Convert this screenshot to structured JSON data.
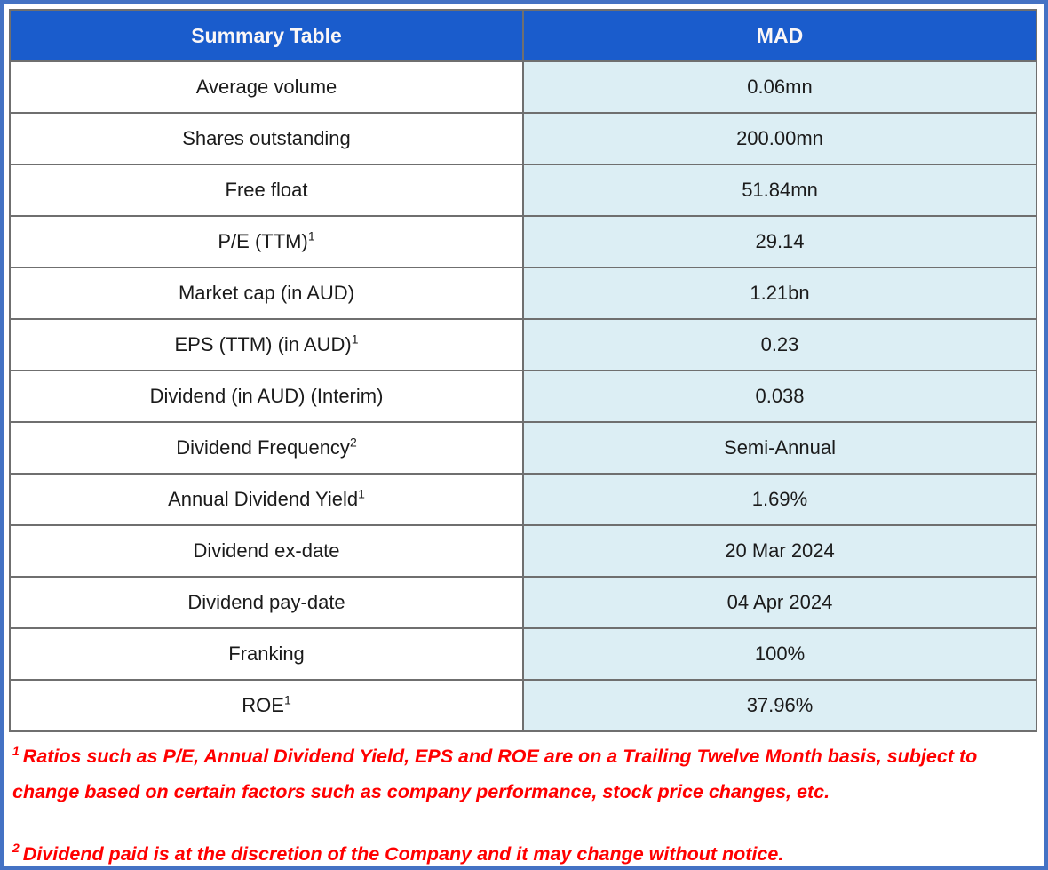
{
  "colors": {
    "frame_border": "#4472C4",
    "header_bg": "#1A5CCC",
    "value_bg": "#DCEEF4",
    "grid_border": "#6F6F6F",
    "footnote": "#FF0000"
  },
  "table": {
    "header": {
      "col1": "Summary Table",
      "col2": "MAD"
    },
    "rows": [
      {
        "label": "Average volume",
        "sup": "",
        "value": "0.06mn"
      },
      {
        "label": "Shares outstanding",
        "sup": "",
        "value": "200.00mn"
      },
      {
        "label": "Free float",
        "sup": "",
        "value": "51.84mn"
      },
      {
        "label": "P/E (TTM)",
        "sup": "1",
        "value": "29.14"
      },
      {
        "label": "Market cap (in AUD)",
        "sup": "",
        "value": "1.21bn"
      },
      {
        "label": "EPS (TTM) (in AUD)",
        "sup": "1",
        "value": "0.23"
      },
      {
        "label": "Dividend (in AUD) (Interim)",
        "sup": "",
        "value": "0.038"
      },
      {
        "label": "Dividend Frequency",
        "sup": "2",
        "value": "Semi-Annual"
      },
      {
        "label": "Annual Dividend Yield",
        "sup": "1",
        "value": "1.69%"
      },
      {
        "label": "Dividend ex-date",
        "sup": "",
        "value": "20 Mar 2024"
      },
      {
        "label": "Dividend pay-date",
        "sup": "",
        "value": "04 Apr 2024"
      },
      {
        "label": "Franking",
        "sup": "",
        "value": "100%"
      },
      {
        "label": "ROE",
        "sup": "1",
        "value": "37.96%"
      }
    ]
  },
  "footnotes": [
    {
      "sup": "1",
      "text": "Ratios such as P/E, Annual Dividend Yield, EPS and ROE are on a Trailing Twelve Month basis, subject to change based on certain factors such as company performance, stock price changes, etc."
    },
    {
      "sup": "2",
      "text": "Dividend paid is at the discretion of the Company and it may change without notice."
    }
  ]
}
